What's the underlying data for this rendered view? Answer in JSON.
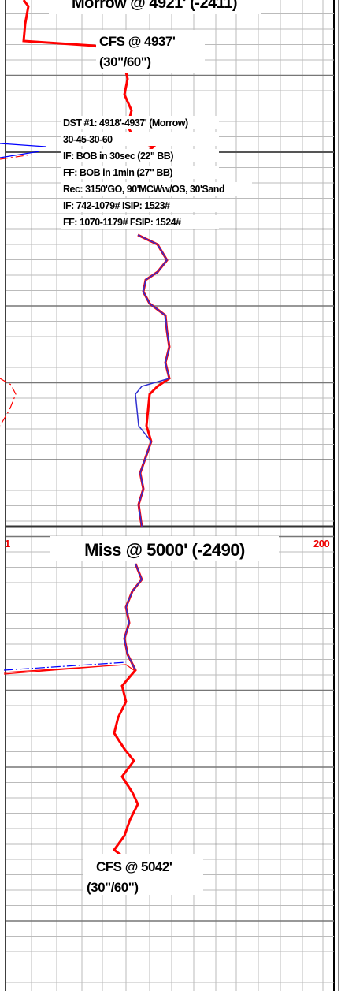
{
  "tops": [
    {
      "label": "Morrow @ 4921' (-2411)"
    },
    {
      "label": "Miss @ 5000' (-2490)"
    }
  ],
  "cfs": [
    {
      "label": "CFS @ 4937'",
      "time": "(30\"/60\")"
    },
    {
      "label": "CFS @ 5042'",
      "time": "(30\"/60\")"
    }
  ],
  "dst": {
    "lines": [
      "DST #1: 4918'-4937' (Morrow)",
      "30-45-30-60",
      "IF: BOB in 30sec (22\" BB)",
      "FF: BOB in 1min (27\" BB)",
      "Rec: 3150'GO, 90'MCWw/OS, 30'Sand",
      "IF: 742-1079# ISIP: 1523#",
      "FF: 1070-1179# FSIP: 1524#"
    ]
  },
  "scale": {
    "left": "1",
    "right": "200"
  }
}
